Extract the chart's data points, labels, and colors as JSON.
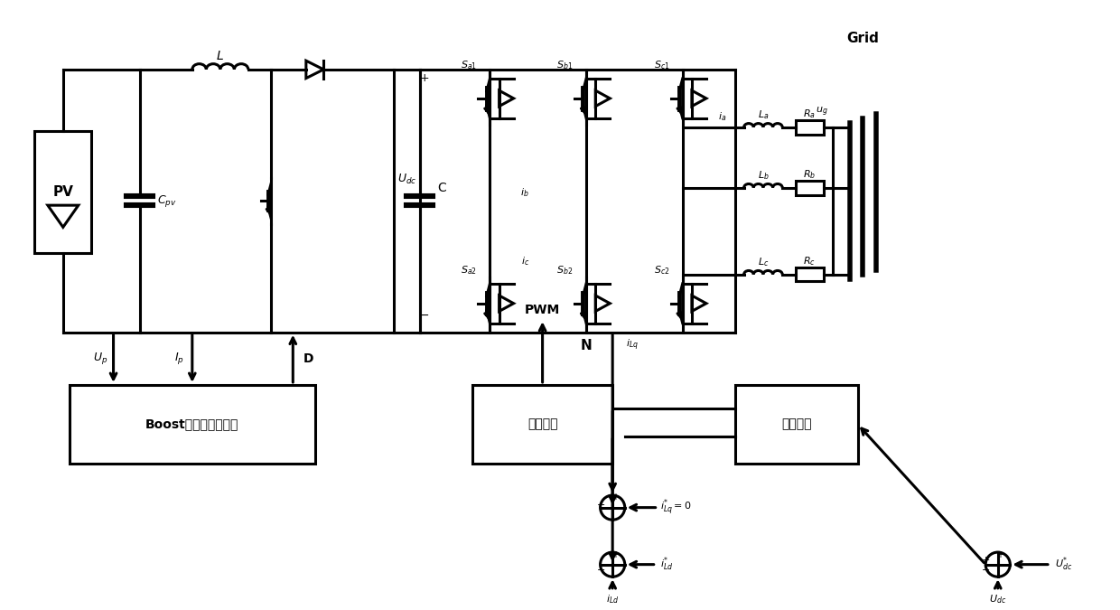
{
  "bg": "#ffffff",
  "lc": "#000000",
  "lw": 2.2,
  "labels": {
    "L": "L",
    "Cpv": "$C_{pv}$",
    "PV": "PV",
    "Udc": "$U_{dc}$",
    "C": "C",
    "Sa1": "$S_{a1}$",
    "Sb1": "$S_{b1}$",
    "Sc1": "$S_{c1}$",
    "Sa2": "$S_{a2}$",
    "Sb2": "$S_{b2}$",
    "Sc2": "$S_{c2}$",
    "N": "N",
    "La": "$L_a$",
    "Lb": "$L_b$",
    "Lc": "$L_c$",
    "Ra": "$R_a$",
    "Rb": "$R_b$",
    "Rc": "$R_c$",
    "ia": "$i_a$",
    "ib": "$i_b$",
    "ic": "$i_c$",
    "ug": "$u_g$",
    "Grid": "Grid",
    "Up": "$U_p$",
    "Ip": "$I_p$",
    "D": "D",
    "PWM": "PWM",
    "boost": "Boost升压电路控制器",
    "current_ctrl": "电流控制",
    "voltage_ctrl": "电压控制",
    "iLq": "$i_{Lq}$",
    "iLq_ref": "$i^{*}_{Lq}=0$",
    "iLd": "$i_{Ld}$",
    "iLd_ref": "$i^{*}_{Ld}$",
    "Udc_ref": "$U^{*}_{dc}$",
    "Udc_meas": "$U_{dc}$"
  }
}
